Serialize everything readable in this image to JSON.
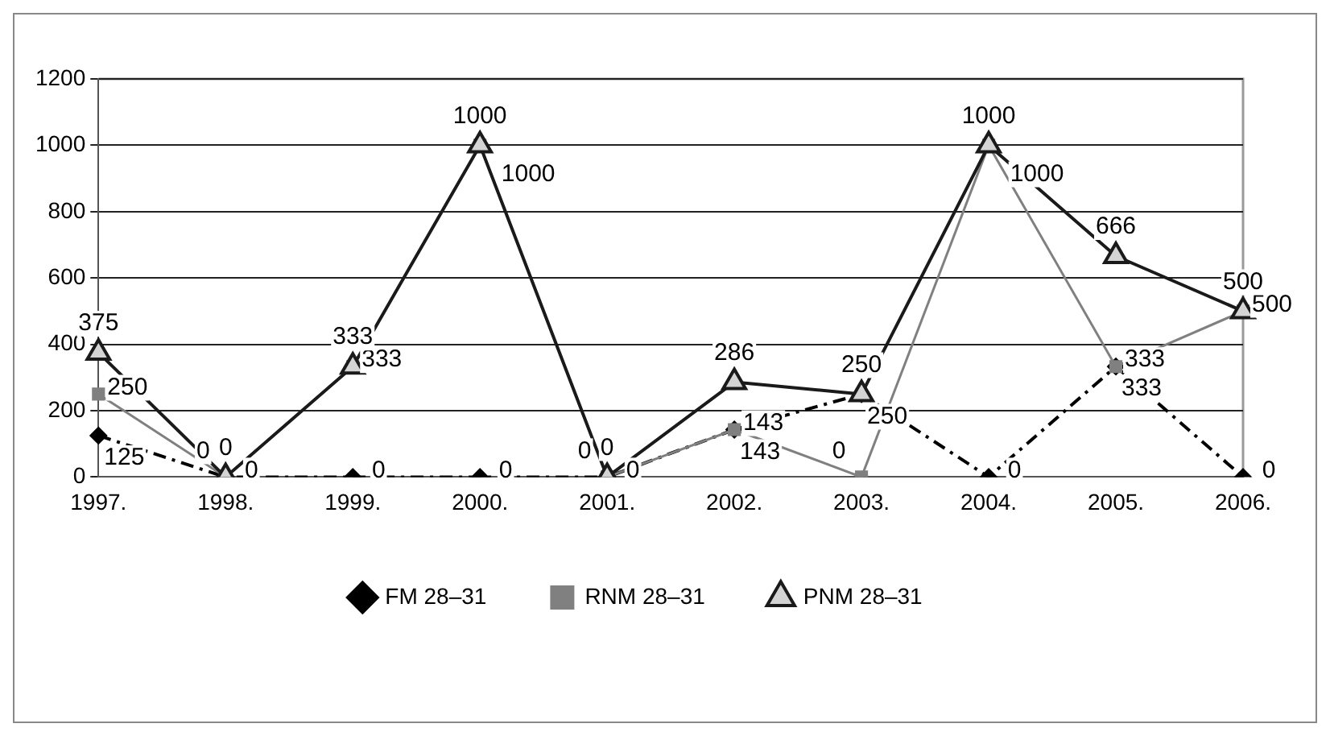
{
  "chart_data": {
    "type": "line",
    "categories": [
      "1997.",
      "1998.",
      "1999.",
      "2000.",
      "2001.",
      "2002.",
      "2003.",
      "2004.",
      "2005.",
      "2006."
    ],
    "series": [
      {
        "name": "FM 28–31",
        "color": "#000000",
        "marker": "diamond",
        "line_style": "dashdot",
        "values": [
          125,
          0,
          0,
          0,
          0,
          143,
          250,
          0,
          333,
          0
        ]
      },
      {
        "name": "RNM 28–31",
        "color": "#808080",
        "marker": "square",
        "line_style": "solid",
        "values": [
          250,
          0,
          333,
          1000,
          0,
          143,
          0,
          1000,
          333,
          500
        ]
      },
      {
        "name": "PNM 28–31",
        "color": "#1a1a1a",
        "marker": "triangle",
        "line_style": "solid",
        "values": [
          375,
          0,
          333,
          1000,
          0,
          286,
          250,
          1000,
          666,
          500
        ]
      }
    ],
    "ylim": [
      0,
      1200
    ],
    "yticks": [
      0,
      200,
      400,
      600,
      800,
      1000,
      1200
    ],
    "grid": "y",
    "legend": "bottom",
    "data_labels": true
  }
}
